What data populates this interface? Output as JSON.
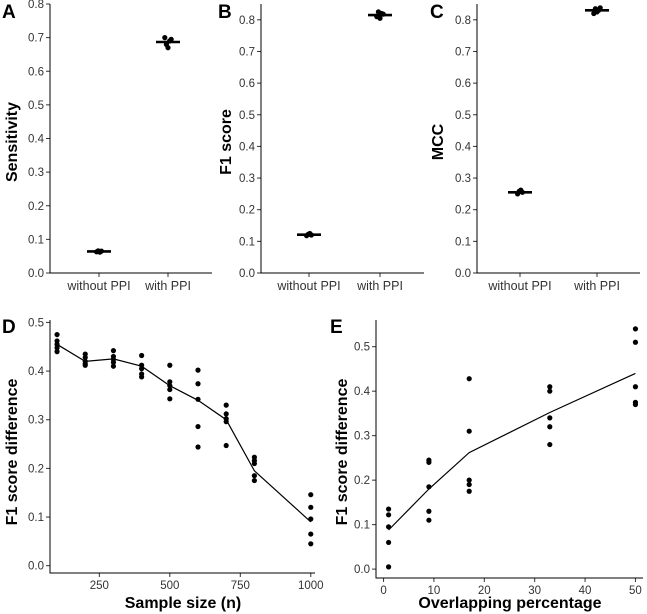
{
  "chart_data": [
    {
      "panel": "A",
      "type": "scatter",
      "title": "",
      "xlabel": "",
      "ylabel": "Sensitivity",
      "categories": [
        "without PPI",
        "with PPI"
      ],
      "ylim": [
        0,
        0.8
      ],
      "yticks": [
        0.0,
        0.1,
        0.2,
        0.3,
        0.4,
        0.5,
        0.6,
        0.7,
        0.8
      ],
      "ytick_labels": [
        "0.0",
        "0.1",
        "0.2",
        "0.3",
        "0.4",
        "0.5",
        "0.6",
        "0.7",
        "0.8"
      ],
      "points": [
        [
          0.063,
          0.066,
          0.062,
          0.065
        ],
        [
          0.7,
          0.68,
          0.67,
          0.69,
          0.695
        ]
      ],
      "medians": [
        0.064,
        0.687
      ]
    },
    {
      "panel": "B",
      "type": "scatter",
      "title": "",
      "xlabel": "",
      "ylabel": "F1 score",
      "categories": [
        "without PPI",
        "with PPI"
      ],
      "ylim": [
        0,
        0.85
      ],
      "yticks": [
        0.0,
        0.1,
        0.2,
        0.3,
        0.4,
        0.5,
        0.6,
        0.7,
        0.8
      ],
      "ytick_labels": [
        "0.0",
        "0.1",
        "0.2",
        "0.3",
        "0.4",
        "0.5",
        "0.6",
        "0.7",
        "0.8"
      ],
      "points": [
        [
          0.118,
          0.122,
          0.125,
          0.12
        ],
        [
          0.81,
          0.825,
          0.805,
          0.82,
          0.818
        ]
      ],
      "medians": [
        0.121,
        0.815
      ]
    },
    {
      "panel": "C",
      "type": "scatter",
      "title": "",
      "xlabel": "",
      "ylabel": "MCC",
      "categories": [
        "without PPI",
        "with PPI"
      ],
      "ylim": [
        0,
        0.85
      ],
      "yticks": [
        0.0,
        0.1,
        0.2,
        0.3,
        0.4,
        0.5,
        0.6,
        0.7,
        0.8
      ],
      "ytick_labels": [
        "0.0",
        "0.1",
        "0.2",
        "0.3",
        "0.4",
        "0.5",
        "0.6",
        "0.7",
        "0.8"
      ],
      "points": [
        [
          0.25,
          0.258,
          0.262,
          0.255
        ],
        [
          0.82,
          0.835,
          0.825,
          0.83,
          0.838
        ]
      ],
      "medians": [
        0.255,
        0.83
      ]
    },
    {
      "panel": "D",
      "type": "line",
      "title": "",
      "xlabel": "Sample size (n)",
      "ylabel": "F1 score difference",
      "xlim": [
        75,
        1015
      ],
      "ylim": [
        -0.015,
        0.505
      ],
      "xticks": [
        250,
        500,
        750,
        1000
      ],
      "xtick_labels": [
        "250",
        "500",
        "750",
        "1000"
      ],
      "yticks": [
        0.0,
        0.1,
        0.2,
        0.3,
        0.4,
        0.5
      ],
      "ytick_labels": [
        "0.0",
        "0.1",
        "0.2",
        "0.3",
        "0.4",
        "0.5"
      ],
      "x": [
        100,
        200,
        300,
        400,
        500,
        600,
        700,
        800,
        1000
      ],
      "points": [
        [
          0.475,
          0.462,
          0.455,
          0.448,
          0.44
        ],
        [
          0.435,
          0.428,
          0.42,
          0.415,
          0.412
        ],
        [
          0.442,
          0.43,
          0.424,
          0.418,
          0.41
        ],
        [
          0.432,
          0.412,
          0.405,
          0.394,
          0.388
        ],
        [
          0.412,
          0.378,
          0.37,
          0.362,
          0.343
        ],
        [
          0.402,
          0.374,
          0.342,
          0.286,
          0.244
        ],
        [
          0.33,
          0.312,
          0.302,
          0.296,
          0.247
        ],
        [
          0.223,
          0.216,
          0.21,
          0.185,
          0.175
        ],
        [
          0.146,
          0.12,
          0.096,
          0.065,
          0.045
        ]
      ],
      "trend": [
        0.455,
        0.42,
        0.425,
        0.41,
        0.37,
        0.34,
        0.3,
        0.195,
        0.09
      ]
    },
    {
      "panel": "E",
      "type": "line",
      "title": "",
      "xlabel": "Overlapping percentage",
      "ylabel": "F1 score difference",
      "xlim": [
        -1.5,
        51.5
      ],
      "ylim": [
        -0.02,
        0.56
      ],
      "xticks": [
        0,
        10,
        20,
        30,
        40,
        50
      ],
      "xtick_labels": [
        "0",
        "10",
        "20",
        "30",
        "40",
        "50"
      ],
      "yticks": [
        0.0,
        0.1,
        0.2,
        0.3,
        0.4,
        0.5
      ],
      "ytick_labels": [
        "0.0",
        "0.1",
        "0.2",
        "0.3",
        "0.4",
        "0.5"
      ],
      "x": [
        1,
        9,
        17,
        33,
        50
      ],
      "points": [
        [
          0.135,
          0.122,
          0.095,
          0.06,
          0.005
        ],
        [
          0.245,
          0.24,
          0.185,
          0.13,
          0.11
        ],
        [
          0.428,
          0.31,
          0.2,
          0.19,
          0.175
        ],
        [
          0.41,
          0.4,
          0.34,
          0.32,
          0.28
        ],
        [
          0.54,
          0.51,
          0.41,
          0.375,
          0.37
        ]
      ],
      "trend": [
        0.088,
        0.18,
        0.262,
        0.352,
        0.44
      ]
    }
  ]
}
